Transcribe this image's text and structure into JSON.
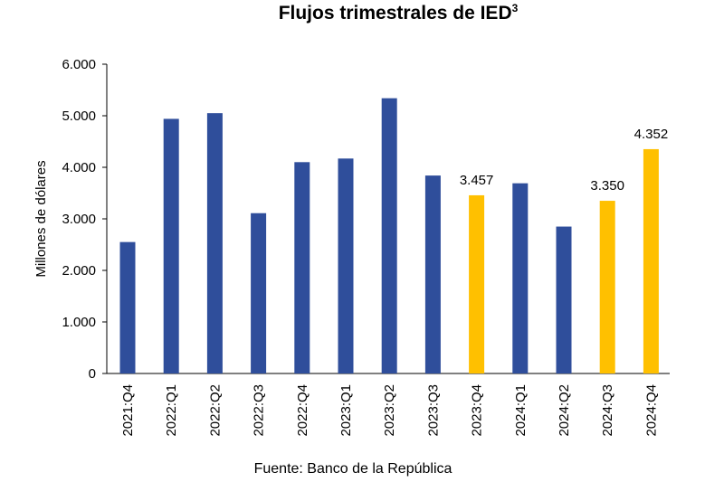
{
  "title": "Flujos trimestrales de IED",
  "title_superscript": "3",
  "source": "Fuente: Banco de la República",
  "chart_data": {
    "type": "bar",
    "ylabel": "Millones de dólares",
    "xlabel": "",
    "ylim": [
      0,
      6000
    ],
    "y_ticks": [
      "0",
      "1.000",
      "2.000",
      "3.000",
      "4.000",
      "5.000",
      "6.000"
    ],
    "categories": [
      "2021:Q4",
      "2022:Q1",
      "2022:Q2",
      "2022:Q3",
      "2022:Q4",
      "2023:Q1",
      "2023:Q2",
      "2023:Q3",
      "2023:Q4",
      "2024:Q1",
      "2024:Q2",
      "2024:Q3",
      "2024:Q4"
    ],
    "values": [
      2550,
      4940,
      5050,
      3110,
      4100,
      4170,
      5340,
      3840,
      3457,
      3690,
      2850,
      3350,
      4352
    ],
    "highlight": [
      false,
      false,
      false,
      false,
      false,
      false,
      false,
      false,
      true,
      false,
      false,
      true,
      true
    ],
    "data_labels": [
      "",
      "",
      "",
      "",
      "",
      "",
      "",
      "",
      "3.457",
      "",
      "",
      "3.350",
      "4.352"
    ],
    "colors": {
      "primary": "#2F4E9B",
      "highlight": "#FFC000",
      "axis": "#000000"
    }
  }
}
